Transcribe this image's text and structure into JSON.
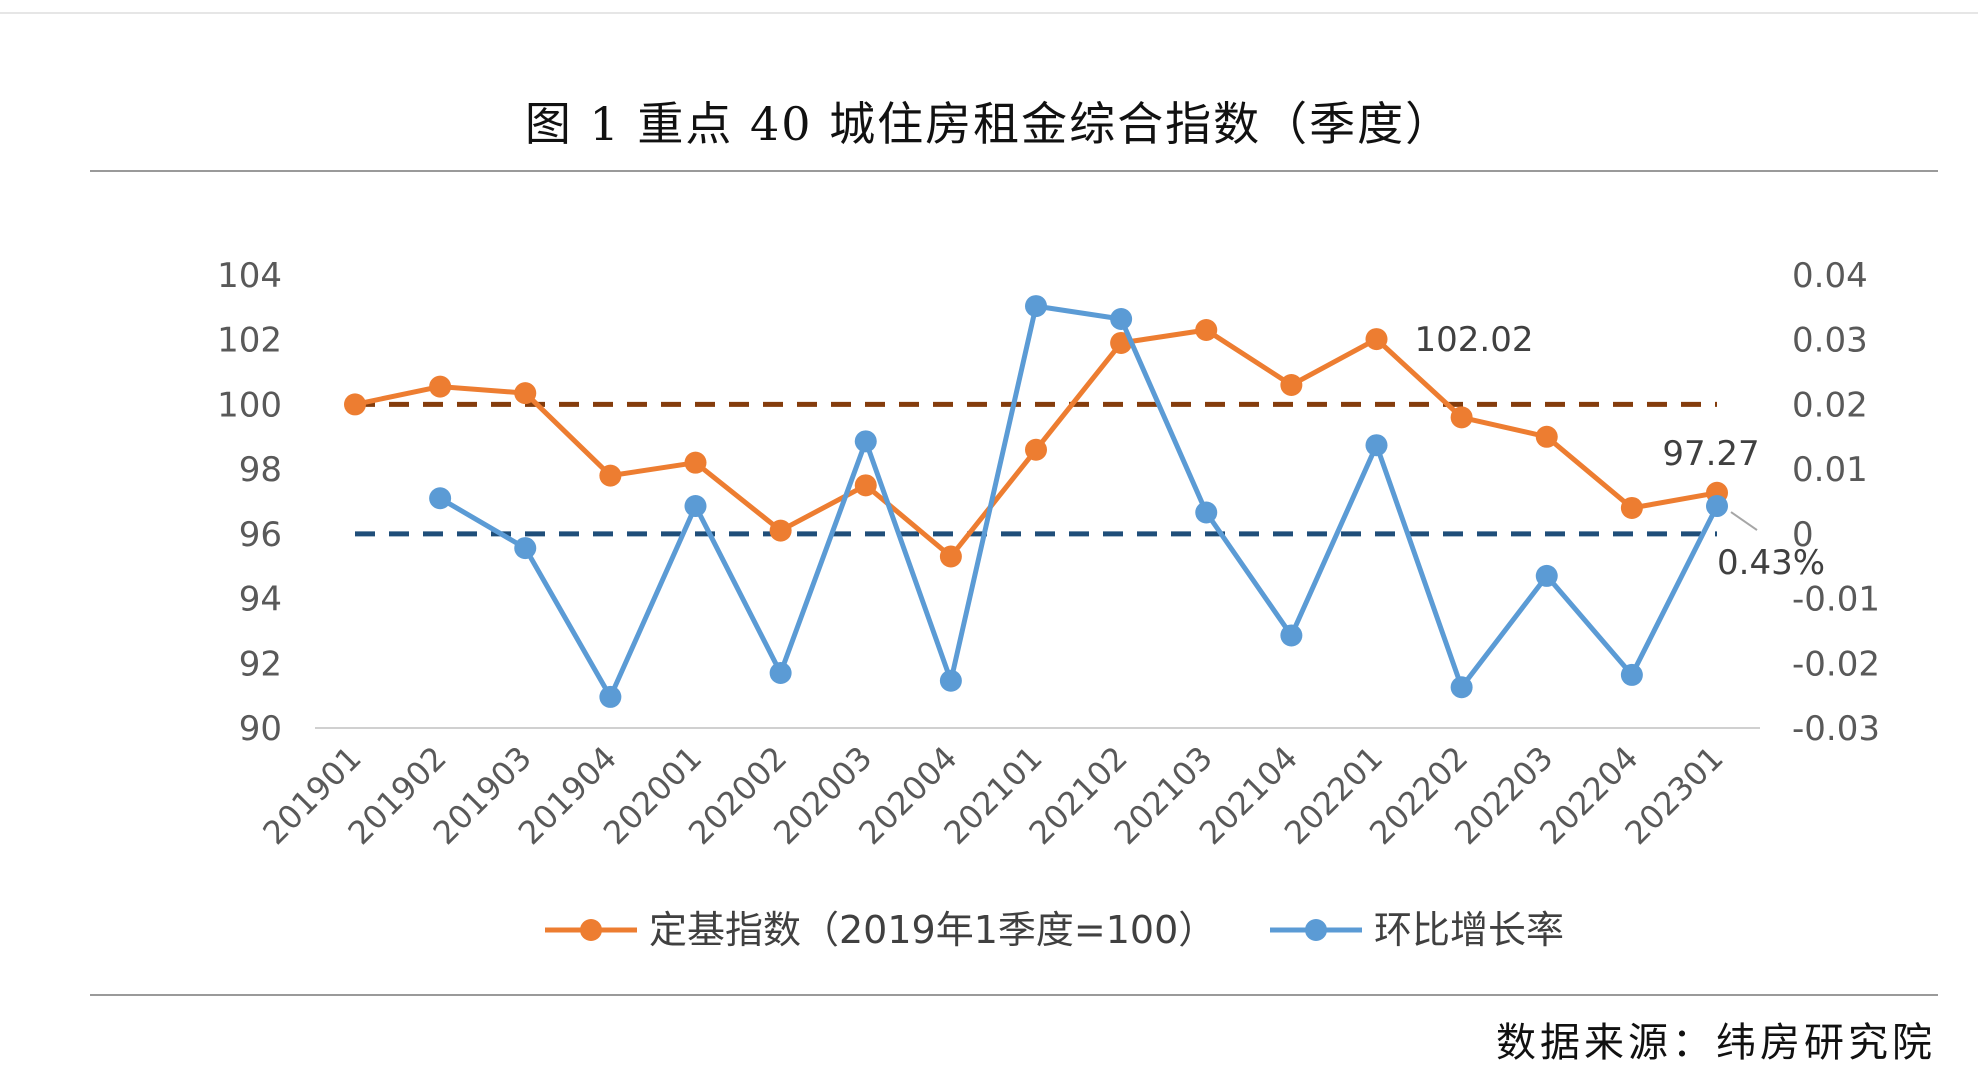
{
  "title": "图 1  重点 40 城住房租金综合指数（季度）",
  "source": "数据来源：纬房研究院",
  "chart_data": {
    "type": "line",
    "categories": [
      "201901",
      "201902",
      "201903",
      "201904",
      "202001",
      "202002",
      "202003",
      "202004",
      "202101",
      "202102",
      "202103",
      "202104",
      "202201",
      "202202",
      "202203",
      "202204",
      "202301"
    ],
    "y_left": {
      "ticks": [
        "90",
        "92",
        "94",
        "96",
        "98",
        "100",
        "102",
        "104"
      ],
      "ylim": [
        90,
        104
      ]
    },
    "y_right": {
      "ticks": [
        "-0.03",
        "-0.02",
        "-0.01",
        "0",
        "0.01",
        "0.02",
        "0.03",
        "0.04"
      ],
      "ylim": [
        -0.03,
        0.04
      ]
    },
    "series": [
      {
        "name": "定基指数（2019年1季度=100）",
        "axis": "left",
        "color": "#ED7D31",
        "values": [
          100.0,
          100.55,
          100.35,
          97.8,
          98.2,
          96.1,
          97.5,
          95.3,
          98.6,
          101.9,
          102.3,
          100.6,
          102.02,
          99.6,
          99.0,
          96.8,
          97.27
        ]
      },
      {
        "name": "环比增长率",
        "axis": "right",
        "color": "#5B9BD5",
        "values": [
          null,
          0.0055,
          -0.0022,
          -0.0252,
          0.0043,
          -0.0215,
          0.0143,
          -0.0227,
          0.0352,
          0.0332,
          0.0033,
          -0.0157,
          0.0137,
          -0.0237,
          -0.0065,
          -0.0218,
          0.0043
        ]
      }
    ],
    "reference_lines": [
      {
        "axis": "left",
        "value": 100,
        "color": "#843C0C",
        "style": "dashed"
      },
      {
        "axis": "left",
        "value": 96,
        "color": "#1F4E79",
        "style": "dashed"
      }
    ],
    "annotations": [
      {
        "series": 0,
        "index": 12,
        "text": "102.02"
      },
      {
        "series": 0,
        "index": 16,
        "text": "97.27"
      },
      {
        "series": 1,
        "index": 16,
        "text": "0.43%"
      }
    ],
    "legend_position": "bottom",
    "grid": false
  }
}
